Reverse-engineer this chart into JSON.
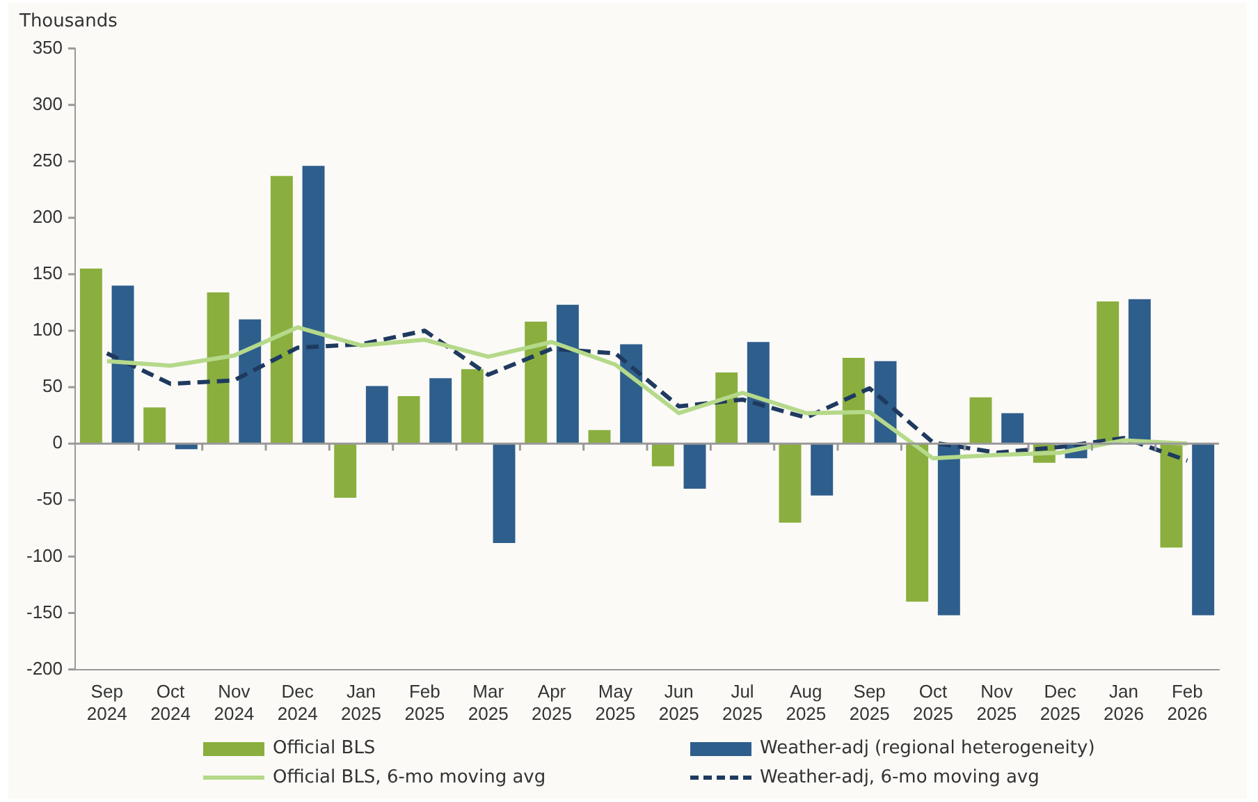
{
  "chart_data": {
    "type": "bar",
    "ylabel": "Thousands",
    "categories": [
      "Sep 2024",
      "Oct 2024",
      "Nov 2024",
      "Dec 2024",
      "Jan 2025",
      "Feb 2025",
      "Mar 2025",
      "Apr 2025",
      "May 2025",
      "Jun 2025",
      "Jul 2025",
      "Aug 2025",
      "Sep 2025",
      "Oct 2025",
      "Nov 2025",
      "Dec 2025",
      "Jan 2026",
      "Feb 2026"
    ],
    "series": [
      {
        "name": "Official BLS",
        "color": "#8aaf3e",
        "values": [
          155,
          32,
          134,
          237,
          -48,
          42,
          66,
          108,
          12,
          -20,
          63,
          -70,
          76,
          -140,
          41,
          -17,
          126,
          -92
        ]
      },
      {
        "name": "Weather-adj (regional heterogeneity)",
        "color": "#2e5e8c",
        "values": [
          140,
          -5,
          110,
          246,
          51,
          58,
          -88,
          123,
          88,
          -40,
          90,
          -46,
          73,
          -152,
          27,
          -13,
          128,
          -152
        ]
      },
      {
        "name": "Official BLS, 6-mo moving avg",
        "type": "line",
        "color": "#b5d98a",
        "line_style": "solid",
        "values": [
          73,
          69,
          78,
          103,
          87,
          92,
          77,
          90,
          70,
          27,
          45,
          27,
          28,
          -13,
          -10,
          -8,
          3,
          0
        ]
      },
      {
        "name": "Weather-adj, 6-mo moving avg",
        "type": "line",
        "color": "#1f3a5f",
        "line_style": "dashed",
        "values": [
          80,
          53,
          56,
          85,
          88,
          100,
          61,
          84,
          80,
          33,
          39,
          23,
          49,
          1,
          -8,
          -3,
          5,
          -15
        ]
      }
    ],
    "ylim": [
      -200,
      350
    ],
    "yticks": [
      -200,
      -150,
      -100,
      -50,
      0,
      50,
      100,
      150,
      200,
      250,
      300,
      350
    ],
    "legend": "bottom",
    "marker": "none"
  }
}
